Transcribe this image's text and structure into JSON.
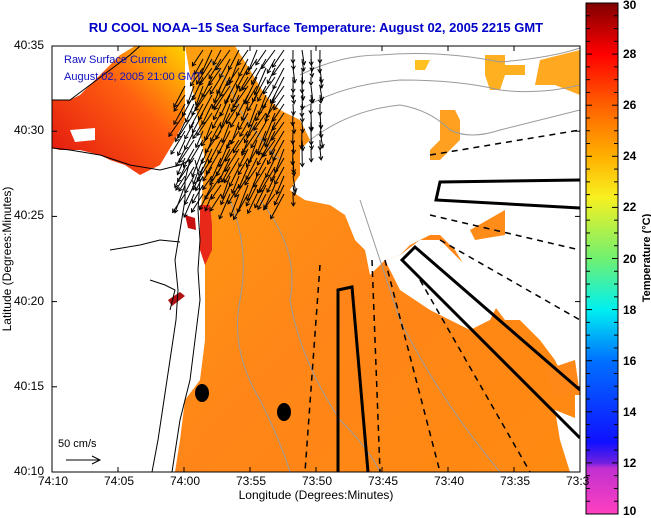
{
  "title": "RU COOL  NOAA–15  Sea Surface Temperature:  August 02, 2005 2215 GMT",
  "overlay": {
    "line1": "Raw Surface Current",
    "line2": "August 02, 2005 21:00 GMT"
  },
  "axes": {
    "xlabel": "Longitude (Degrees:Minutes)",
    "ylabel": "Latitude (Degrees:Minutes)",
    "xticks": [
      "74:10",
      "74:05",
      "74:00",
      "73:55",
      "73:50",
      "73:45",
      "73:40",
      "73:35",
      "73:3"
    ],
    "yticks": [
      "40:35",
      "40:30",
      "40:25",
      "40:20",
      "40:15",
      "40:10"
    ]
  },
  "scale": {
    "label": "50 cm/s"
  },
  "colorbar": {
    "label": "Temperature (°C)",
    "ticks": [
      "30",
      "28",
      "26",
      "24",
      "22",
      "20",
      "18",
      "16",
      "14",
      "12",
      "10"
    ],
    "range": [
      10,
      30
    ],
    "colors": [
      "#ff40c0",
      "#9020e0",
      "#0010ff",
      "#0090ff",
      "#00f0f0",
      "#70f070",
      "#f0f020",
      "#ffb000",
      "#ff6000",
      "#ff0000",
      "#800000"
    ]
  },
  "colors": {
    "title": "#0000c8",
    "sst_main": "#ff8c1a",
    "sst_warm": "#e82010",
    "land_contour": "#000000",
    "bathymetry": "#999999"
  }
}
